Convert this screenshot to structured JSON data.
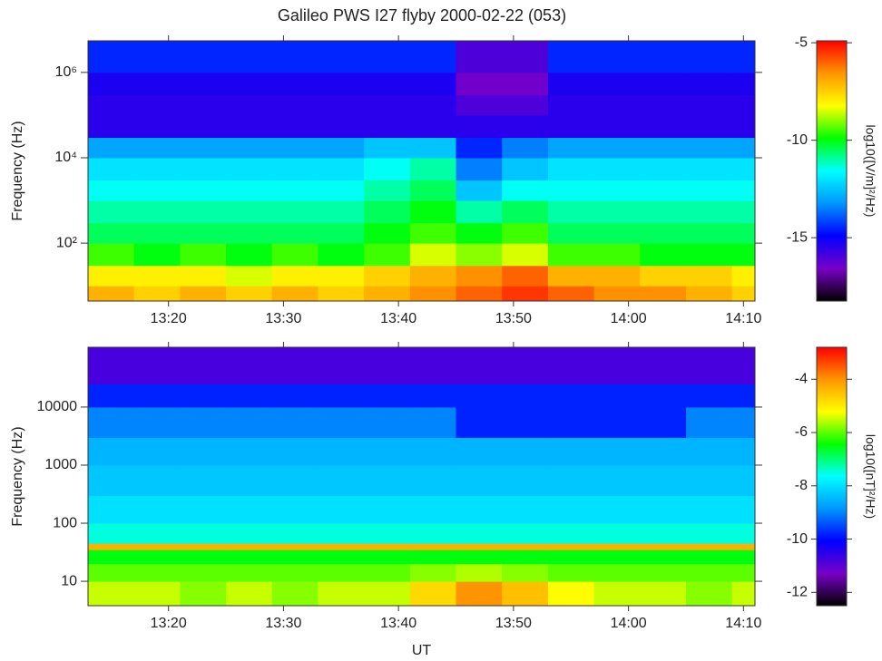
{
  "chart_data": [
    {
      "type": "heatmap",
      "title": "Galileo PWS I27 flyby 2000-02-22 (053)",
      "ylabel": "Frequency (Hz)",
      "colorbar_label": "log10([V/m]²/Hz)",
      "log_y": true,
      "colormap": [
        "#000000",
        "#7800c8",
        "#0000ff",
        "#0096ff",
        "#00ffff",
        "#00ff00",
        "#ffff00",
        "#ff9600",
        "#ff0000"
      ],
      "xlim": [
        793,
        851
      ],
      "xticks": [
        {
          "value": 800,
          "label": "13:20"
        },
        {
          "value": 810,
          "label": "13:30"
        },
        {
          "value": 820,
          "label": "13:40"
        },
        {
          "value": 830,
          "label": "13:50"
        },
        {
          "value": 840,
          "label": "14:00"
        },
        {
          "value": 850,
          "label": "14:10"
        }
      ],
      "ylim": [
        4.4,
        5500000
      ],
      "yticks": [
        {
          "value": 100,
          "label": "10²"
        },
        {
          "value": 10000,
          "label": "10⁴"
        },
        {
          "value": 1000000,
          "label": "10⁶"
        }
      ],
      "clim": [
        -18.25,
        -4.9
      ],
      "cticks": [
        -5,
        -10,
        -15
      ],
      "x_edges": [
        793,
        797,
        801,
        805,
        809,
        813,
        817,
        821,
        825,
        829,
        833,
        837,
        841,
        845,
        849,
        851
      ],
      "y_edges": [
        4.4,
        10,
        30,
        100,
        300,
        1000,
        3000,
        10000,
        30000,
        100000,
        300000,
        1000000,
        5500000
      ],
      "z": [
        [
          -7,
          -7.5,
          -7,
          -7.5,
          -7,
          -7.5,
          -7,
          -6.5,
          -6,
          -5.5,
          -6,
          -6.5,
          -6.5,
          -7,
          -7.5
        ],
        [
          -8,
          -8,
          -8,
          -8.5,
          -8,
          -8,
          -7.5,
          -7,
          -6.5,
          -6,
          -7,
          -7,
          -7.5,
          -7.5,
          -8
        ],
        [
          -9.5,
          -10,
          -9.5,
          -10,
          -9.5,
          -10,
          -9.5,
          -8.5,
          -9,
          -8.5,
          -9.5,
          -9.5,
          -10,
          -10,
          -10
        ],
        [
          -10.5,
          -10.5,
          -10.5,
          -10.5,
          -10.5,
          -10.5,
          -10,
          -9.5,
          -10,
          -9.5,
          -10.5,
          -10.5,
          -10.5,
          -10.5,
          -10.5
        ],
        [
          -11,
          -11,
          -11,
          -11,
          -11,
          -11,
          -10.5,
          -10,
          -11,
          -10.5,
          -11,
          -11,
          -11,
          -11,
          -11
        ],
        [
          -11.5,
          -11.5,
          -11.5,
          -11.5,
          -11.5,
          -11.5,
          -11,
          -10.5,
          -12.5,
          -11.5,
          -11.5,
          -11.5,
          -11.5,
          -11.5,
          -11.5
        ],
        [
          -12,
          -12,
          -12,
          -12,
          -12,
          -12,
          -11.5,
          -11,
          -13.5,
          -12.5,
          -12,
          -12,
          -12,
          -12,
          -12
        ],
        [
          -13,
          -13,
          -13,
          -13,
          -13,
          -13,
          -12.5,
          -12.5,
          -14.5,
          -13.5,
          -13,
          -13,
          -13,
          -13,
          -13
        ],
        [
          -15.5,
          -15.5,
          -15.5,
          -15.5,
          -15.5,
          -15.5,
          -15.5,
          -15.5,
          -15.5,
          -15.5,
          -15.5,
          -15.5,
          -15.5,
          -15.5,
          -15.5
        ],
        [
          -15.5,
          -15.5,
          -15.5,
          -15.5,
          -15.5,
          -15.5,
          -15.5,
          -15.5,
          -16,
          -16,
          -15.5,
          -15.5,
          -15.5,
          -15.5,
          -15.5
        ],
        [
          -15.3,
          -15.3,
          -15.3,
          -15.3,
          -15.3,
          -15.3,
          -15.3,
          -15.3,
          -16.5,
          -16.5,
          -15.3,
          -15.3,
          -15.3,
          -15.3,
          -15.3
        ],
        [
          -14.5,
          -14.5,
          -14.5,
          -14.5,
          -14.5,
          -14.5,
          -14.5,
          -14.5,
          -16,
          -16,
          -14.5,
          -14.5,
          -14.5,
          -14.5,
          -14.5
        ]
      ]
    },
    {
      "type": "heatmap",
      "xlabel": "UT",
      "ylabel": "Frequency (Hz)",
      "colorbar_label": "log10([nT]²/Hz)",
      "log_y": true,
      "colormap": [
        "#000000",
        "#7800c8",
        "#0000ff",
        "#0096ff",
        "#00ffff",
        "#00ff00",
        "#ffff00",
        "#ff9600",
        "#ff0000"
      ],
      "xlim": [
        793,
        851
      ],
      "xticks": [
        {
          "value": 800,
          "label": "13:20"
        },
        {
          "value": 810,
          "label": "13:30"
        },
        {
          "value": 820,
          "label": "13:40"
        },
        {
          "value": 830,
          "label": "13:50"
        },
        {
          "value": 840,
          "label": "14:00"
        },
        {
          "value": 850,
          "label": "14:10"
        }
      ],
      "ylim": [
        3.8,
        107000
      ],
      "yticks": [
        10,
        100,
        1000,
        10000
      ],
      "clim": [
        -12.5,
        -2.8
      ],
      "cticks": [
        -4,
        -6,
        -8,
        -10,
        -12
      ],
      "x_edges": [
        793,
        797,
        801,
        805,
        809,
        813,
        817,
        821,
        825,
        829,
        833,
        837,
        841,
        845,
        849,
        851
      ],
      "y_edges": [
        3.8,
        10,
        20,
        35,
        45,
        100,
        300,
        1000,
        3000,
        10000,
        25000,
        107000
      ],
      "z": [
        [
          -5.5,
          -5.5,
          -5.8,
          -5.5,
          -5.8,
          -5.5,
          -5.5,
          -4.8,
          -4,
          -4.5,
          -5.2,
          -5.5,
          -5.5,
          -5.8,
          -5.5
        ],
        [
          -6,
          -6,
          -6,
          -6,
          -6,
          -6,
          -6,
          -5.8,
          -5.6,
          -5.8,
          -6,
          -6,
          -6,
          -6,
          -6
        ],
        [
          -6.5,
          -6.5,
          -6.5,
          -6.5,
          -6.5,
          -6.5,
          -6.5,
          -6.5,
          -6.5,
          -6.5,
          -6.5,
          -6.5,
          -6.5,
          -6.5,
          -6.5
        ],
        [
          -4.3,
          -4.3,
          -4.3,
          -4.3,
          -4.3,
          -4.3,
          -4.3,
          -4.3,
          -4.3,
          -4.3,
          -4.3,
          -4.3,
          -4.3,
          -4.3,
          -4.3
        ],
        [
          -7.5,
          -7.5,
          -7.5,
          -7.5,
          -7.5,
          -7.5,
          -7.5,
          -7.5,
          -7.5,
          -7.5,
          -7.5,
          -7.5,
          -7.5,
          -7.5,
          -7.5
        ],
        [
          -8,
          -8,
          -8,
          -8,
          -8,
          -8,
          -8,
          -8,
          -8,
          -8,
          -8,
          -8,
          -8,
          -8,
          -8
        ],
        [
          -8.3,
          -8.3,
          -8.3,
          -8.3,
          -8.3,
          -8.3,
          -8.3,
          -8.3,
          -8.3,
          -8.3,
          -8.3,
          -8.3,
          -8.3,
          -8.3,
          -8.3
        ],
        [
          -8.5,
          -8.5,
          -8.5,
          -8.5,
          -8.5,
          -8.5,
          -8.5,
          -8.5,
          -8.5,
          -8.5,
          -8.5,
          -8.5,
          -8.5,
          -8.5,
          -8.5
        ],
        [
          -9,
          -9,
          -9,
          -9,
          -9,
          -9,
          -9,
          -9,
          -9.8,
          -9.8,
          -9.8,
          -9.8,
          -9.8,
          -9,
          -9
        ],
        [
          -9.8,
          -9.8,
          -9.8,
          -9.8,
          -9.8,
          -9.8,
          -9.8,
          -9.8,
          -9.8,
          -9.8,
          -9.8,
          -9.8,
          -9.8,
          -9.8,
          -9.8
        ],
        [
          -10.8,
          -10.8,
          -10.8,
          -10.8,
          -10.8,
          -10.8,
          -10.8,
          -10.8,
          -10.8,
          -10.8,
          -10.8,
          -10.8,
          -10.8,
          -10.8,
          -10.8
        ]
      ]
    }
  ]
}
